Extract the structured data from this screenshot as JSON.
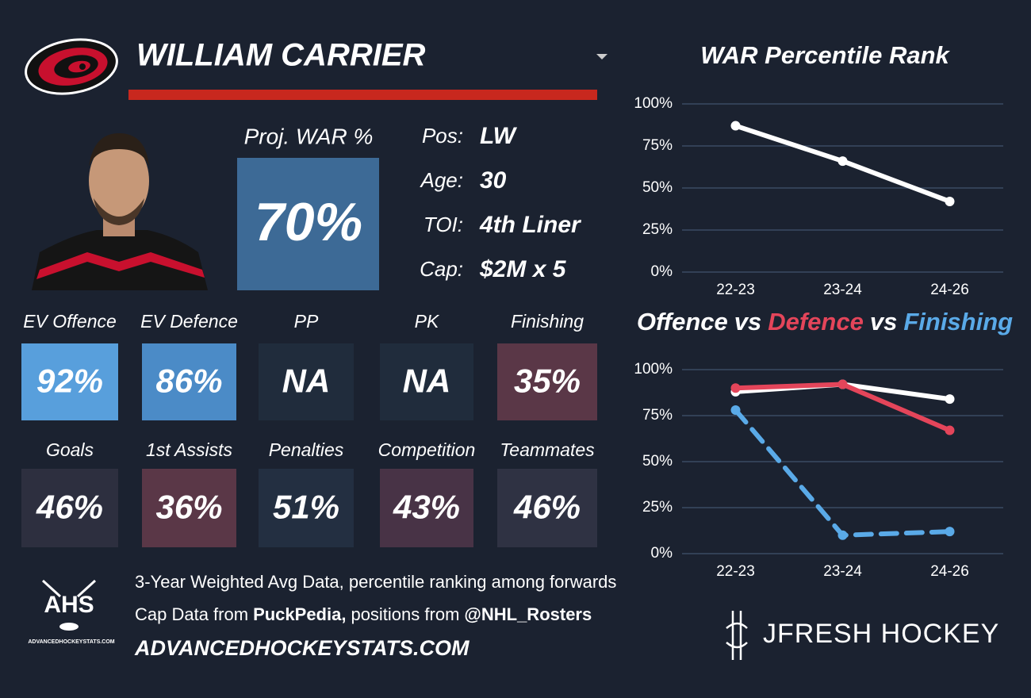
{
  "header": {
    "player_name": "WILLIAM CARRIER"
  },
  "proj_war": {
    "label": "Proj. WAR %",
    "value": "70%"
  },
  "info": [
    {
      "label": "Pos:",
      "value": "LW"
    },
    {
      "label": "Age:",
      "value": "30"
    },
    {
      "label": "TOI:",
      "value": "4th Liner"
    },
    {
      "label": "Cap:",
      "value": "$2M x 5"
    }
  ],
  "tiles": [
    [
      {
        "label": "EV Offence",
        "value": "92%",
        "color": "#589fdc"
      },
      {
        "label": "EV Defence",
        "value": "86%",
        "color": "#4b8bc7"
      },
      {
        "label": "PP",
        "value": "NA",
        "color": "#202c3c"
      },
      {
        "label": "PK",
        "value": "NA",
        "color": "#202c3c"
      },
      {
        "label": "Finishing",
        "value": "35%",
        "color": "#5a3747"
      }
    ],
    [
      {
        "label": "Goals",
        "value": "46%",
        "color": "#2d2f3f"
      },
      {
        "label": "1st Assists",
        "value": "36%",
        "color": "#5a3747"
      },
      {
        "label": "Penalties",
        "value": "51%",
        "color": "#232f41"
      },
      {
        "label": "Competition",
        "value": "43%",
        "color": "#483346"
      },
      {
        "label": "Teammates",
        "value": "46%",
        "color": "#2f3243"
      }
    ]
  ],
  "footer": {
    "line1": "3-Year Weighted Avg Data, percentile ranking among forwards",
    "line2": [
      {
        "text": "Cap Data from",
        "bold": false
      },
      {
        "text": "PuckPedia,",
        "bold": true
      },
      {
        "text": "positions from",
        "bold": false
      },
      {
        "text": "@NHL_Rosters",
        "bold": true
      }
    ],
    "website": "ADVANCEDHOCKEYSTATS.COM"
  },
  "logos": {
    "ahs": "AHS",
    "ahs_small": "ADVANCEDHOCKEYSTATS.COM",
    "jfresh": "JFRESH HOCKEY"
  },
  "chart_data": [
    {
      "type": "line",
      "title": "WAR Percentile Rank",
      "categories": [
        "22-23",
        "23-24",
        "24-26"
      ],
      "series": [
        {
          "color": "#ffffff",
          "values": [
            87,
            66,
            42
          ]
        }
      ],
      "ylim": [
        0,
        100
      ],
      "yticks": [
        {
          "value": 0,
          "label": "0%"
        },
        {
          "value": 25,
          "label": "25%"
        },
        {
          "value": 50,
          "label": "50%"
        },
        {
          "value": 75,
          "label": "75%"
        },
        {
          "value": 100,
          "label": "100%"
        }
      ],
      "grid": true
    },
    {
      "type": "line",
      "title_connector": "vs",
      "categories": [
        "22-23",
        "23-24",
        "24-26"
      ],
      "series": [
        {
          "name": "Offence",
          "color": "#ffffff",
          "values": [
            88,
            92,
            84
          ]
        },
        {
          "name": "Defence",
          "color": "#e4455a",
          "values": [
            90,
            92,
            67
          ]
        },
        {
          "name": "Finishing",
          "color": "#5aaae8",
          "values": [
            78,
            10,
            12
          ],
          "dashed": true
        }
      ],
      "ylim": [
        0,
        100
      ],
      "yticks": [
        {
          "value": 0,
          "label": "0%"
        },
        {
          "value": 25,
          "label": "25%"
        },
        {
          "value": 50,
          "label": "50%"
        },
        {
          "value": 75,
          "label": "75%"
        },
        {
          "value": 100,
          "label": "100%"
        }
      ],
      "grid": true
    }
  ]
}
